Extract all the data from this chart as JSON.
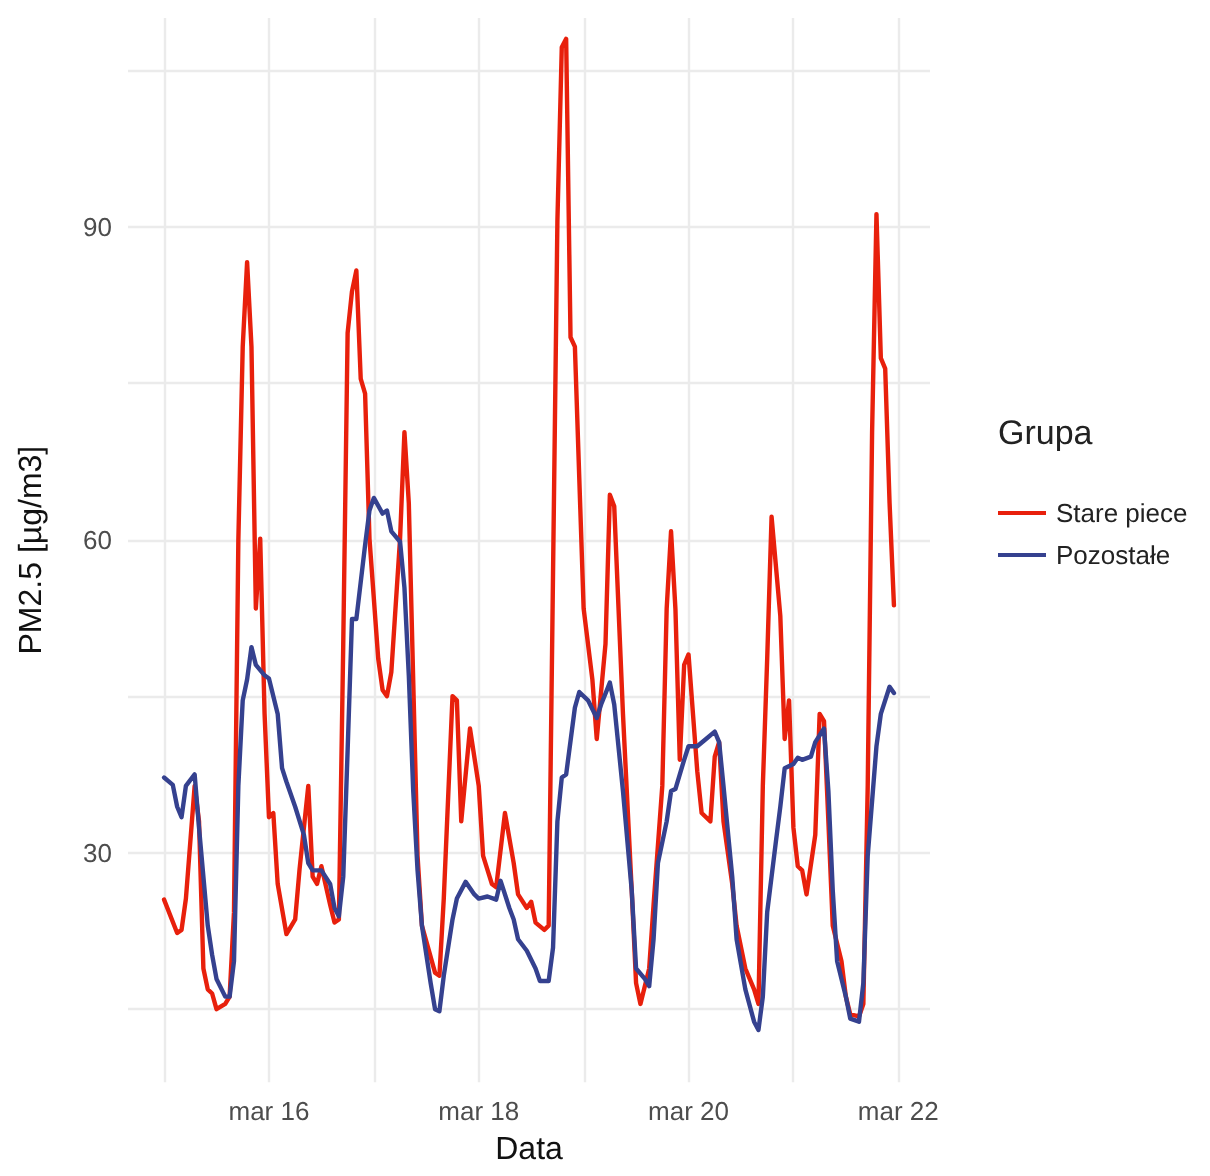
{
  "chart_data": {
    "type": "line",
    "xlabel": "Data",
    "ylabel": "PM2.5 [µg/m3]",
    "legend_title": "Grupa",
    "legend": "right",
    "grid": true,
    "marker": "none",
    "line_style": "solid",
    "xlim": [
      "--03-14T15:45",
      "--03-22T07:15"
    ],
    "xticks": [
      {
        "value": "--03-15",
        "label": null
      },
      {
        "value": "--03-16",
        "label": "mar 16"
      },
      {
        "value": "--03-17",
        "label": null
      },
      {
        "value": "--03-18",
        "label": "mar 18"
      },
      {
        "value": "--03-19",
        "label": null
      },
      {
        "value": "--03-20",
        "label": "mar 20"
      },
      {
        "value": "--03-21",
        "label": null
      },
      {
        "value": "--03-22",
        "label": "mar 22"
      }
    ],
    "ylim": [
      8,
      110
    ],
    "yticks": [
      {
        "value": 15,
        "label": null
      },
      30,
      {
        "value": 45,
        "label": null
      },
      60,
      {
        "value": 75,
        "label": null
      },
      90,
      {
        "value": 105,
        "label": null
      }
    ],
    "series": [
      {
        "name": "Stare piece",
        "color": "#e8200c",
        "x": [
          "--03-15T00:00",
          "--03-15T03:00",
          "--03-15T04:00",
          "--03-15T05:00",
          "--03-15T07:00",
          "--03-15T08:00",
          "--03-15T09:00",
          "--03-15T10:00",
          "--03-15T11:00",
          "--03-15T12:00",
          "--03-15T14:00",
          "--03-15T15:00",
          "--03-15T16:00",
          "--03-15T17:00",
          "--03-15T18:00",
          "--03-15T19:00",
          "--03-15T20:00",
          "--03-15T21:00",
          "--03-15T22:00",
          "--03-15T23:00",
          "--03-16T00:00",
          "--03-16T01:00",
          "--03-16T02:00",
          "--03-16T04:00",
          "--03-16T06:00",
          "--03-16T07:00",
          "--03-16T09:00",
          "--03-16T10:00",
          "--03-16T11:00",
          "--03-16T12:00",
          "--03-16T14:00",
          "--03-16T15:00",
          "--03-16T16:00",
          "--03-16T17:00",
          "--03-16T18:00",
          "--03-16T19:00",
          "--03-16T20:00",
          "--03-16T21:00",
          "--03-16T22:00",
          "--03-16T23:00",
          "--03-17T01:00",
          "--03-17T02:00",
          "--03-17T03:00",
          "--03-17T04:00",
          "--03-17T06:00",
          "--03-17T07:00",
          "--03-17T08:00",
          "--03-17T10:00",
          "--03-17T11:00",
          "--03-17T14:00",
          "--03-17T15:00",
          "--03-17T16:00",
          "--03-17T18:00",
          "--03-17T19:00",
          "--03-17T20:00",
          "--03-17T22:00",
          "--03-18T00:00",
          "--03-18T01:00",
          "--03-18T03:00",
          "--03-18T04:00",
          "--03-18T06:00",
          "--03-18T08:00",
          "--03-18T09:00",
          "--03-18T11:00",
          "--03-18T12:00",
          "--03-18T13:00",
          "--03-18T15:00",
          "--03-18T16:00",
          "--03-18T17:00",
          "--03-18T18:00",
          "--03-18T19:00",
          "--03-18T20:00",
          "--03-18T21:00",
          "--03-18T22:00",
          "--03-19T00:00",
          "--03-19T02:00",
          "--03-19T03:00",
          "--03-19T05:00",
          "--03-19T06:00",
          "--03-19T07:00",
          "--03-19T09:00",
          "--03-19T11:00",
          "--03-19T12:00",
          "--03-19T13:00",
          "--03-19T15:00",
          "--03-19T16:00",
          "--03-19T18:00",
          "--03-19T19:00",
          "--03-19T20:00",
          "--03-19T21:00",
          "--03-19T22:00",
          "--03-19T23:00",
          "--03-20T00:00",
          "--03-20T02:00",
          "--03-20T03:00",
          "--03-20T05:00",
          "--03-20T06:00",
          "--03-20T07:00",
          "--03-20T08:00",
          "--03-20T10:00",
          "--03-20T11:00",
          "--03-20T13:00",
          "--03-20T15:00",
          "--03-20T16:00",
          "--03-20T17:00",
          "--03-20T18:00",
          "--03-20T19:00",
          "--03-20T21:00",
          "--03-20T22:00",
          "--03-20T23:00",
          "--03-21T00:00",
          "--03-21T01:00",
          "--03-21T02:00",
          "--03-21T03:00",
          "--03-21T05:00",
          "--03-21T06:00",
          "--03-21T07:00",
          "--03-21T08:00",
          "--03-21T09:00",
          "--03-21T11:00",
          "--03-21T12:00",
          "--03-21T13:00",
          "--03-21T15:00",
          "--03-21T16:00",
          "--03-21T17:00",
          "--03-21T18:00",
          "--03-21T19:00",
          "--03-21T20:00",
          "--03-21T21:00",
          "--03-21T22:00",
          "--03-21T23:00"
        ],
        "values": [
          25.5,
          22.3,
          22.6,
          25.6,
          36.4,
          33,
          18.9,
          16.9,
          16.5,
          15,
          15.5,
          16.2,
          24.3,
          60,
          78.5,
          86.6,
          78.5,
          53.4,
          60.1,
          43.3,
          33.4,
          33.8,
          27,
          22.2,
          23.6,
          28.4,
          36.4,
          27.7,
          27,
          28.7,
          25,
          23.3,
          23.6,
          50,
          79.8,
          83.8,
          85.8,
          75.4,
          74,
          60.1,
          48.6,
          45.6,
          45,
          47.3,
          60.1,
          70.3,
          63.5,
          29.7,
          23,
          18.5,
          18.2,
          25.6,
          45,
          44.6,
          33,
          41.9,
          36.4,
          29.7,
          27,
          26.7,
          33.8,
          29,
          26,
          24.7,
          25.3,
          23.3,
          22.6,
          23,
          56.8,
          90.6,
          107.2,
          108,
          79.4,
          78.5,
          53.4,
          46.6,
          40.9,
          50,
          64.3,
          63.2,
          43.3,
          26.4,
          17.5,
          15.5,
          18.9,
          25,
          36.4,
          53.4,
          60.8,
          53.4,
          38.9,
          48,
          49,
          37.8,
          33.8,
          33,
          39.2,
          40.6,
          33,
          27,
          23,
          18.9,
          16.9,
          15.5,
          36.4,
          48.6,
          62.2,
          52.7,
          40.9,
          44.6,
          32.4,
          28.7,
          28.3,
          26,
          31.7,
          43.3,
          42.6,
          33,
          23,
          19.6,
          16.2,
          14.5,
          14.3,
          15.5,
          36.4,
          70.3,
          91.2,
          77.4,
          76.4,
          63.5,
          53.7
        ]
      },
      {
        "name": "Pozostałe",
        "color": "#35418f",
        "x": [
          "--03-15T00:00",
          "--03-15T02:00",
          "--03-15T03:00",
          "--03-15T04:00",
          "--03-15T05:00",
          "--03-15T07:00",
          "--03-15T08:00",
          "--03-15T10:00",
          "--03-15T11:00",
          "--03-15T12:00",
          "--03-15T14:00",
          "--03-15T15:00",
          "--03-15T16:00",
          "--03-15T17:00",
          "--03-15T18:00",
          "--03-15T19:00",
          "--03-15T20:00",
          "--03-15T21:00",
          "--03-15T23:00",
          "--03-16T00:00",
          "--03-16T02:00",
          "--03-16T03:00",
          "--03-16T04:00",
          "--03-16T06:00",
          "--03-16T08:00",
          "--03-16T09:00",
          "--03-16T10:00",
          "--03-16T12:00",
          "--03-16T14:00",
          "--03-16T15:00",
          "--03-16T16:00",
          "--03-16T17:00",
          "--03-16T18:00",
          "--03-16T19:00",
          "--03-16T20:00",
          "--03-16T22:00",
          "--03-16T23:00",
          "--03-17T00:00",
          "--03-17T02:00",
          "--03-17T03:00",
          "--03-17T04:00",
          "--03-17T06:00",
          "--03-17T07:00",
          "--03-17T08:00",
          "--03-17T09:00",
          "--03-17T10:00",
          "--03-17T11:00",
          "--03-17T13:00",
          "--03-17T14:00",
          "--03-17T15:00",
          "--03-17T16:00",
          "--03-17T18:00",
          "--03-17T19:00",
          "--03-17T21:00",
          "--03-17T23:00",
          "--03-18T00:00",
          "--03-18T02:00",
          "--03-18T04:00",
          "--03-18T05:00",
          "--03-18T07:00",
          "--03-18T08:00",
          "--03-18T09:00",
          "--03-18T11:00",
          "--03-18T13:00",
          "--03-18T14:00",
          "--03-18T16:00",
          "--03-18T17:00",
          "--03-18T18:00",
          "--03-18T19:00",
          "--03-18T20:00",
          "--03-18T22:00",
          "--03-18T23:00",
          "--03-19T01:00",
          "--03-19T03:00",
          "--03-19T04:00",
          "--03-19T06:00",
          "--03-19T07:00",
          "--03-19T09:00",
          "--03-19T11:00",
          "--03-19T12:00",
          "--03-19T14:00",
          "--03-19T15:00",
          "--03-19T16:00",
          "--03-19T17:00",
          "--03-19T19:00",
          "--03-19T20:00",
          "--03-19T21:00",
          "--03-19T23:00",
          "--03-20T00:00",
          "--03-20T02:00",
          "--03-20T04:00",
          "--03-20T06:00",
          "--03-20T07:00",
          "--03-20T08:00",
          "--03-20T10:00",
          "--03-20T11:00",
          "--03-20T13:00",
          "--03-20T15:00",
          "--03-20T16:00",
          "--03-20T17:00",
          "--03-20T18:00",
          "--03-20T20:00",
          "--03-20T21:00",
          "--03-20T22:00",
          "--03-21T00:00",
          "--03-21T01:00",
          "--03-21T02:00",
          "--03-21T04:00",
          "--03-21T05:00",
          "--03-21T07:00",
          "--03-21T08:00",
          "--03-21T09:00",
          "--03-21T10:00",
          "--03-21T12:00",
          "--03-21T13:00",
          "--03-21T15:00",
          "--03-21T16:00",
          "--03-21T17:00",
          "--03-21T19:00",
          "--03-21T20:00",
          "--03-21T22:00",
          "--03-21T23:00"
        ],
        "values": [
          37.2,
          36.5,
          34.4,
          33.4,
          36.4,
          37.5,
          32.4,
          23,
          20.2,
          17.9,
          16.2,
          16.2,
          19.6,
          36.4,
          44.6,
          46.6,
          49.7,
          48,
          47,
          46.7,
          43.3,
          38.1,
          36.8,
          34.4,
          31.7,
          29,
          28.3,
          28.3,
          27,
          24.7,
          23.9,
          27.7,
          39.8,
          52.4,
          52.4,
          59.5,
          62.8,
          64,
          62.5,
          62.8,
          60.8,
          59.8,
          55.4,
          47,
          36,
          28.3,
          23,
          17.5,
          15,
          14.8,
          18.2,
          23.6,
          25.6,
          27.2,
          26,
          25.6,
          25.8,
          25.5,
          27.3,
          24.7,
          23.6,
          21.7,
          20.6,
          18.9,
          17.7,
          17.7,
          20.9,
          33,
          37.2,
          37.5,
          43.9,
          45.4,
          44.6,
          42.9,
          44.2,
          46.3,
          44.2,
          35.9,
          26.4,
          18.9,
          17.9,
          17.2,
          21.7,
          29,
          33,
          35.9,
          36.1,
          38.9,
          40.2,
          40.2,
          40.9,
          41.6,
          40.6,
          36.4,
          27.7,
          21.7,
          16.9,
          13.8,
          13,
          16.2,
          24.3,
          31.1,
          34.4,
          38.1,
          38.5,
          39.1,
          38.9,
          39.2,
          40.6,
          41.9,
          35.9,
          26.4,
          19.6,
          16.2,
          14.1,
          13.8,
          17.5,
          29.7,
          40.2,
          43.3,
          45.9,
          45.3
        ]
      }
    ]
  }
}
